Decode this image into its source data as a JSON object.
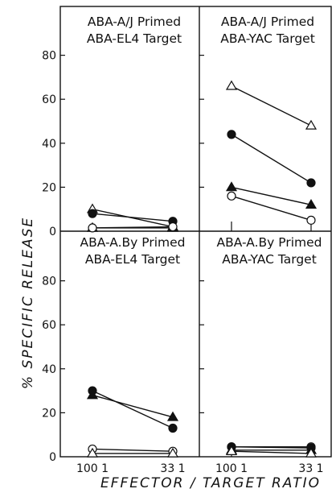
{
  "chart_data": {
    "type": "line",
    "ylabel": "% SPECIFIC RELEASE",
    "xlabel": "EFFECTOR / TARGET RATIO",
    "y_ticks": [
      0,
      20,
      40,
      60,
      80
    ],
    "ylim": [
      0,
      90
    ],
    "x_categories": [
      "100:1",
      "33:1"
    ],
    "x_tick_labels": [
      "100 1",
      "33 1"
    ],
    "grid": false,
    "panels": [
      {
        "title_line1": "ABA-A/J Primed",
        "title_line2": "ABA-EL4 Target",
        "position": "top-left",
        "series": [
          {
            "marker": "open-triangle",
            "values": [
              10,
              2
            ]
          },
          {
            "marker": "filled-circle",
            "values": [
              8,
              4.5
            ]
          },
          {
            "marker": "filled-triangle",
            "values": [
              1.5,
              1.5
            ]
          },
          {
            "marker": "open-circle",
            "values": [
              1.5,
              2
            ]
          }
        ]
      },
      {
        "title_line1": "ABA-A/J Primed",
        "title_line2": "ABA-YAC Target",
        "position": "top-right",
        "series": [
          {
            "marker": "open-triangle",
            "values": [
              66,
              48
            ]
          },
          {
            "marker": "filled-circle",
            "values": [
              44,
              22
            ]
          },
          {
            "marker": "filled-triangle",
            "values": [
              20,
              12
            ]
          },
          {
            "marker": "open-circle",
            "values": [
              16,
              5
            ]
          }
        ]
      },
      {
        "title_line1": "ABA-A.By Primed",
        "title_line2": "ABA-EL4 Target",
        "position": "bottom-left",
        "series": [
          {
            "marker": "filled-circle",
            "values": [
              30,
              13
            ]
          },
          {
            "marker": "filled-triangle",
            "values": [
              28,
              18
            ]
          },
          {
            "marker": "open-circle",
            "values": [
              3.5,
              2.5
            ]
          },
          {
            "marker": "open-triangle",
            "values": [
              1.5,
              1.5
            ]
          }
        ]
      },
      {
        "title_line1": "ABA-A.By Primed",
        "title_line2": "ABA-YAC Target",
        "position": "bottom-right",
        "series": [
          {
            "marker": "open-circle",
            "values": [
              4.5,
              4.5
            ]
          },
          {
            "marker": "filled-circle",
            "values": [
              4.5,
              4
            ]
          },
          {
            "marker": "filled-triangle",
            "values": [
              3,
              3
            ]
          },
          {
            "marker": "open-triangle",
            "values": [
              2.5,
              1.5
            ]
          }
        ]
      }
    ]
  }
}
